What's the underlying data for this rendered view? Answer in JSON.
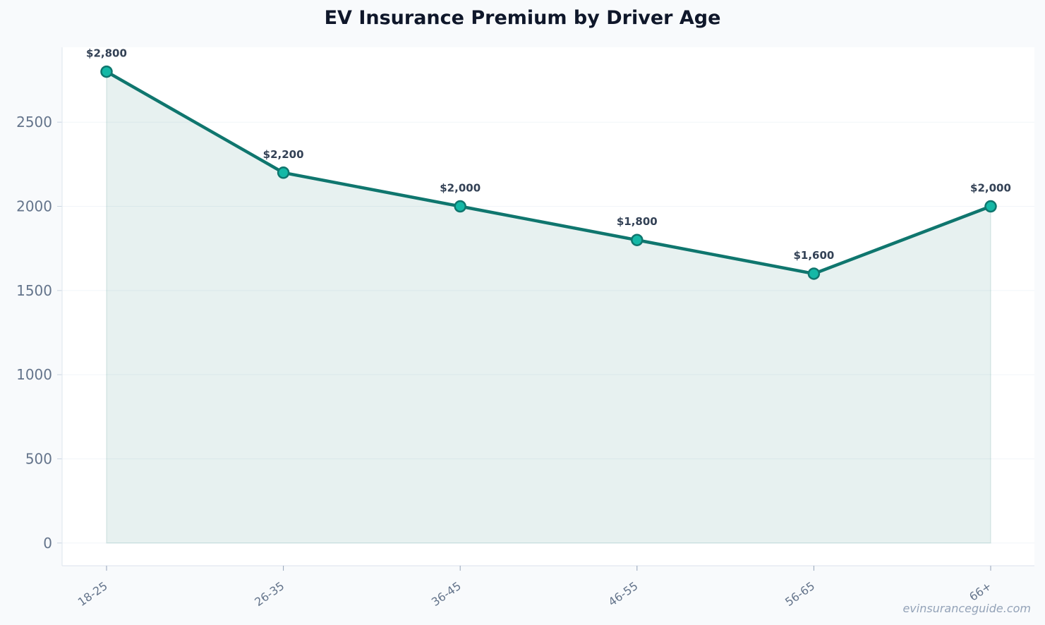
{
  "chart_data": {
    "type": "line",
    "title": "EV Insurance Premium by Driver Age",
    "xlabel": "",
    "ylabel": "",
    "categories": [
      "18-25",
      "26-35",
      "36-45",
      "46-55",
      "56-65",
      "66+"
    ],
    "series": [
      {
        "values": [
          2800,
          2200,
          2000,
          1800,
          1600,
          2000
        ],
        "data_labels": [
          "$2,800",
          "$2,200",
          "$2,000",
          "$1,800",
          "$1,600",
          "$2,000"
        ]
      }
    ],
    "ylim": [
      -135,
      2945
    ],
    "yticks": [
      0,
      500,
      1000,
      1500,
      2000,
      2500
    ],
    "ytick_labels": [
      "0",
      "500",
      "1000",
      "1500",
      "2000",
      "2500"
    ],
    "grid": true,
    "area_fill": true,
    "legend": "none"
  },
  "colors": {
    "line": "#0f766e",
    "marker_fill": "#14b8a6",
    "area_fill": "#0f766e",
    "axis_text": "#64748b",
    "label_text": "#334155",
    "grid": "#f1f5f9"
  },
  "watermark": "evinsuranceguide.com"
}
